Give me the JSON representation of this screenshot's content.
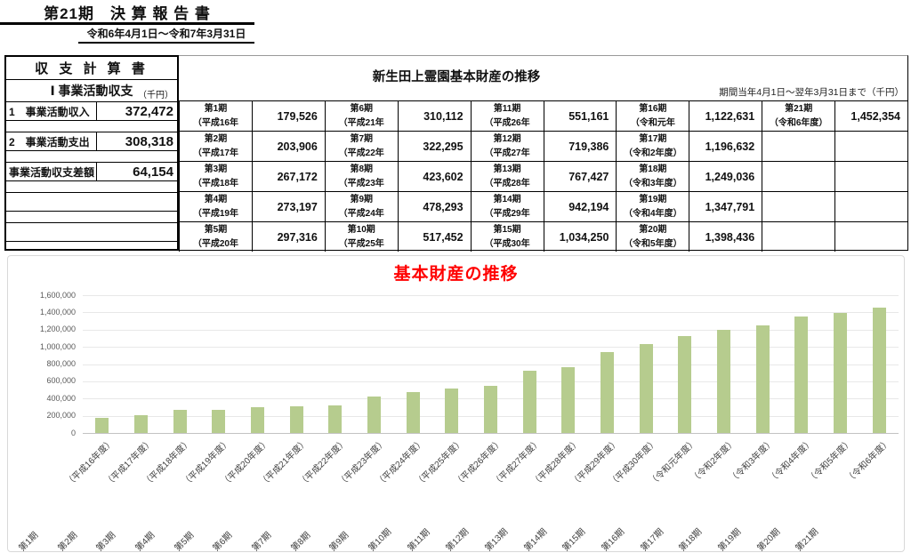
{
  "header": {
    "title": "第21期　決 算 報 告 書",
    "subtitle": "令和6年4月1日～令和7年3月31日"
  },
  "statement": {
    "title": "収 支 計 算 書",
    "section": "Ⅰ 事業活動収支",
    "unit": "（千円）",
    "rows": [
      {
        "label": "1　事業活動収入",
        "value": "372,472"
      },
      {
        "label": "2　事業活動支出",
        "value": "308,318"
      },
      {
        "label": "事業活動収支差額",
        "value": "64,154"
      }
    ]
  },
  "assets": {
    "title": "新生田上霊園基本財産の推移",
    "note": "期間当年4月1日～翌年3月31日まで（千円）",
    "rows": [
      [
        {
          "period": "第1期",
          "year": "（平成16年",
          "value": "179,526"
        },
        {
          "period": "第6期",
          "year": "（平成21年",
          "value": "310,112"
        },
        {
          "period": "第11期",
          "year": "（平成26年",
          "value": "551,161"
        },
        {
          "period": "第16期",
          "year": "（令和元年",
          "value": "1,122,631"
        },
        {
          "period": "第21期",
          "year": "（令和6年度）",
          "value": "1,452,354"
        }
      ],
      [
        {
          "period": "第2期",
          "year": "（平成17年",
          "value": "203,906"
        },
        {
          "period": "第7期",
          "year": "（平成22年",
          "value": "322,295"
        },
        {
          "period": "第12期",
          "year": "（平成27年",
          "value": "719,386"
        },
        {
          "period": "第17期",
          "year": "（令和2年度）",
          "value": "1,196,632"
        },
        {
          "period": "",
          "year": "",
          "value": ""
        }
      ],
      [
        {
          "period": "第3期",
          "year": "（平成18年",
          "value": "267,172"
        },
        {
          "period": "第8期",
          "year": "（平成23年",
          "value": "423,602"
        },
        {
          "period": "第13期",
          "year": "（平成28年",
          "value": "767,427"
        },
        {
          "period": "第18期",
          "year": "（令和3年度）",
          "value": "1,249,036"
        },
        {
          "period": "",
          "year": "",
          "value": ""
        }
      ],
      [
        {
          "period": "第4期",
          "year": "（平成19年",
          "value": "273,197"
        },
        {
          "period": "第9期",
          "year": "（平成24年",
          "value": "478,293"
        },
        {
          "period": "第14期",
          "year": "（平成29年",
          "value": "942,194"
        },
        {
          "period": "第19期",
          "year": "（令和4年度）",
          "value": "1,347,791"
        },
        {
          "period": "",
          "year": "",
          "value": ""
        }
      ],
      [
        {
          "period": "第5期",
          "year": "（平成20年",
          "value": "297,316"
        },
        {
          "period": "第10期",
          "year": "（平成25年",
          "value": "517,452"
        },
        {
          "period": "第15期",
          "year": "（平成30年",
          "value": "1,034,250"
        },
        {
          "period": "第20期",
          "year": "（令和5年度）",
          "value": "1,398,436"
        },
        {
          "period": "",
          "year": "",
          "value": ""
        }
      ]
    ]
  },
  "chart_data": {
    "type": "bar",
    "title": "基本財産の推移",
    "title_color": "#ff0000",
    "bar_color": "#b6cc8e",
    "categories": [
      "第1期（平成16年度）",
      "第2期（平成17年度）",
      "第3期（平成18年度）",
      "第4期（平成19年度）",
      "第5期（平成20年度）",
      "第6期（平成21年度）",
      "第7期（平成22年度）",
      "第8期（平成23年度）",
      "第9期（平成24年度）",
      "第10期（平成25年度）",
      "第11期（平成26年度）",
      "第12期（平成27年度）",
      "第13期（平成28年度）",
      "第14期（平成29年度）",
      "第15期（平成30年度）",
      "第16期（令和元年度）",
      "第17期（令和2年度）",
      "第18期（令和3年度）",
      "第19期（令和4年度）",
      "第20期（令和5年度）",
      "第21期（令和6年度）"
    ],
    "values": [
      179526,
      203906,
      267172,
      273197,
      297316,
      310112,
      322295,
      423602,
      478293,
      517452,
      551161,
      719386,
      767427,
      942194,
      1034250,
      1122631,
      1196632,
      1249036,
      1347791,
      1398436,
      1452354
    ],
    "ylim": [
      0,
      1600000
    ],
    "ytick_interval": 200000,
    "ytick_labels": [
      "0",
      "200,000",
      "400,000",
      "600,000",
      "800,000",
      "1,000,000",
      "1,200,000",
      "1,400,000",
      "1,600,000"
    ],
    "grid": true,
    "legend": "none"
  }
}
